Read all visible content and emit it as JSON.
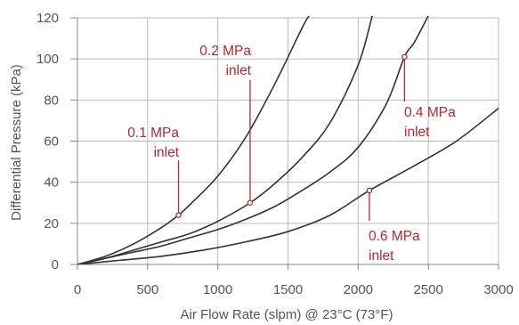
{
  "chart_data": {
    "type": "line",
    "title": "",
    "xlabel": "Air Flow Rate (slpm) @ 23°C (73°F)",
    "ylabel": "Differential Pressure (kPa)",
    "xlim": [
      0,
      3000
    ],
    "ylim": [
      0,
      120
    ],
    "xticks": [
      0,
      500,
      1000,
      1500,
      2000,
      2500,
      3000
    ],
    "yticks": [
      0,
      20,
      40,
      60,
      80,
      100,
      120
    ],
    "grid": true,
    "legend": "none",
    "colors": {
      "line": "#333333",
      "grid": "#bbbbbb",
      "annotation": "#b5282e"
    },
    "series": [
      {
        "x": [
          0,
          200,
          400,
          600,
          720,
          800,
          1000,
          1200,
          1400,
          1600,
          1650
        ],
        "y": [
          0,
          4,
          10,
          18,
          24,
          29,
          43,
          62,
          87,
          115,
          121
        ]
      },
      {
        "x": [
          0,
          200,
          400,
          600,
          800,
          1000,
          1230,
          1400,
          1600,
          1800,
          2000,
          2100
        ],
        "y": [
          0,
          3,
          7,
          11,
          15,
          21,
          30,
          39,
          52,
          69,
          97,
          121
        ]
      },
      {
        "x": [
          0,
          200,
          400,
          600,
          800,
          1000,
          1200,
          1400,
          1600,
          1800,
          2000,
          2200,
          2330,
          2400,
          2500
        ],
        "y": [
          0,
          3,
          6,
          9,
          13,
          17,
          22,
          28,
          36,
          45,
          57,
          78,
          101,
          108,
          121
        ]
      },
      {
        "x": [
          0,
          300,
          600,
          900,
          1200,
          1500,
          1800,
          2080,
          2400,
          2700,
          3000
        ],
        "y": [
          0,
          2,
          4,
          7,
          11,
          16,
          24,
          36,
          48,
          60,
          76
        ]
      }
    ],
    "annotations": [
      {
        "text_lines": [
          "0.1 MPa",
          "inlet"
        ],
        "x": 720,
        "y": 24
      },
      {
        "text_lines": [
          "0.2 MPa",
          "inlet"
        ],
        "x": 1230,
        "y": 30
      },
      {
        "text_lines": [
          "0.4 MPa",
          "inlet"
        ],
        "x": 2330,
        "y": 101
      },
      {
        "text_lines": [
          "0.6 MPa",
          "inlet"
        ],
        "x": 2080,
        "y": 36
      }
    ]
  }
}
